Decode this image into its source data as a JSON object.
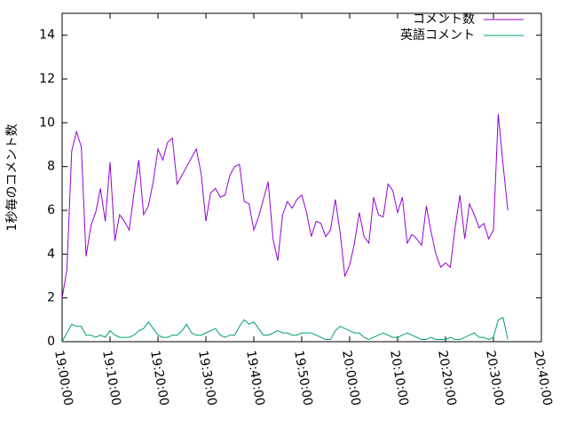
{
  "chart_data": {
    "type": "line",
    "ylabel": "1秒毎のコメント数",
    "x": [
      "19:00:00",
      "19:01:00",
      "19:02:00",
      "19:03:00",
      "19:04:00",
      "19:05:00",
      "19:06:00",
      "19:07:00",
      "19:08:00",
      "19:09:00",
      "19:10:00",
      "19:11:00",
      "19:12:00",
      "19:13:00",
      "19:14:00",
      "19:15:00",
      "19:16:00",
      "19:17:00",
      "19:18:00",
      "19:19:00",
      "19:20:00",
      "19:21:00",
      "19:22:00",
      "19:23:00",
      "19:24:00",
      "19:25:00",
      "19:26:00",
      "19:27:00",
      "19:28:00",
      "19:29:00",
      "19:30:00",
      "19:31:00",
      "19:32:00",
      "19:33:00",
      "19:34:00",
      "19:35:00",
      "19:36:00",
      "19:37:00",
      "19:38:00",
      "19:39:00",
      "19:40:00",
      "19:41:00",
      "19:42:00",
      "19:43:00",
      "19:44:00",
      "19:45:00",
      "19:46:00",
      "19:47:00",
      "19:48:00",
      "19:49:00",
      "19:50:00",
      "19:51:00",
      "19:52:00",
      "19:53:00",
      "19:54:00",
      "19:55:00",
      "19:56:00",
      "19:57:00",
      "19:58:00",
      "19:59:00",
      "20:00:00",
      "20:01:00",
      "20:02:00",
      "20:03:00",
      "20:04:00",
      "20:05:00",
      "20:06:00",
      "20:07:00",
      "20:08:00",
      "20:09:00",
      "20:10:00",
      "20:11:00",
      "20:12:00",
      "20:13:00",
      "20:14:00",
      "20:15:00",
      "20:16:00",
      "20:17:00",
      "20:18:00",
      "20:19:00",
      "20:20:00",
      "20:21:00",
      "20:22:00",
      "20:23:00",
      "20:24:00",
      "20:25:00",
      "20:26:00",
      "20:27:00",
      "20:28:00",
      "20:29:00",
      "20:30:00",
      "20:31:00",
      "20:32:00",
      "20:33:00"
    ],
    "series": [
      {
        "name": "コメント数",
        "color": "#9400d3",
        "values": [
          2.0,
          3.3,
          8.7,
          9.6,
          8.9,
          3.9,
          5.3,
          5.9,
          7.0,
          5.5,
          8.2,
          4.6,
          5.8,
          5.5,
          5.1,
          6.8,
          8.3,
          5.8,
          6.2,
          7.3,
          8.8,
          8.3,
          9.1,
          9.3,
          7.2,
          7.6,
          8.0,
          8.4,
          8.8,
          7.7,
          5.5,
          6.8,
          7.0,
          6.6,
          6.7,
          7.6,
          8.0,
          8.1,
          6.4,
          6.3,
          5.1,
          5.7,
          6.5,
          7.3,
          4.7,
          3.7,
          5.8,
          6.4,
          6.1,
          6.5,
          6.7,
          5.9,
          4.8,
          5.5,
          5.4,
          4.8,
          5.1,
          6.5,
          5.0,
          3.0,
          3.5,
          4.5,
          5.9,
          4.8,
          4.5,
          6.6,
          5.8,
          5.7,
          7.2,
          6.9,
          5.9,
          6.6,
          4.5,
          4.9,
          4.7,
          4.4,
          6.2,
          5.0,
          4.0,
          3.4,
          3.6,
          3.4,
          5.2,
          6.7,
          4.7,
          6.3,
          5.8,
          5.2,
          5.4,
          4.7,
          5.1,
          10.4,
          8.1,
          6.0
        ]
      },
      {
        "name": "英語コメント",
        "color": "#009e73",
        "values": [
          0.0,
          0.4,
          0.8,
          0.7,
          0.7,
          0.3,
          0.3,
          0.2,
          0.3,
          0.2,
          0.5,
          0.3,
          0.2,
          0.2,
          0.2,
          0.3,
          0.5,
          0.6,
          0.9,
          0.6,
          0.3,
          0.2,
          0.2,
          0.3,
          0.3,
          0.5,
          0.8,
          0.4,
          0.3,
          0.3,
          0.4,
          0.5,
          0.6,
          0.3,
          0.2,
          0.3,
          0.3,
          0.7,
          1.0,
          0.8,
          0.9,
          0.6,
          0.3,
          0.3,
          0.4,
          0.5,
          0.4,
          0.4,
          0.3,
          0.3,
          0.4,
          0.4,
          0.4,
          0.3,
          0.2,
          0.1,
          0.1,
          0.5,
          0.7,
          0.6,
          0.5,
          0.4,
          0.4,
          0.2,
          0.1,
          0.2,
          0.3,
          0.4,
          0.3,
          0.2,
          0.2,
          0.3,
          0.4,
          0.3,
          0.2,
          0.1,
          0.1,
          0.2,
          0.1,
          0.1,
          0.1,
          0.2,
          0.1,
          0.1,
          0.2,
          0.3,
          0.4,
          0.2,
          0.2,
          0.1,
          0.2,
          1.0,
          1.1,
          0.1
        ]
      }
    ],
    "xlim": [
      "19:00:00",
      "20:40:00"
    ],
    "xticks": [
      "19:00:00",
      "19:10:00",
      "19:20:00",
      "19:30:00",
      "19:40:00",
      "19:50:00",
      "20:00:00",
      "20:10:00",
      "20:20:00",
      "20:30:00",
      "20:40:00"
    ],
    "ylim": [
      0,
      15
    ],
    "yticks": [
      0,
      2,
      4,
      6,
      8,
      10,
      12,
      14
    ],
    "legend": "top-right"
  }
}
